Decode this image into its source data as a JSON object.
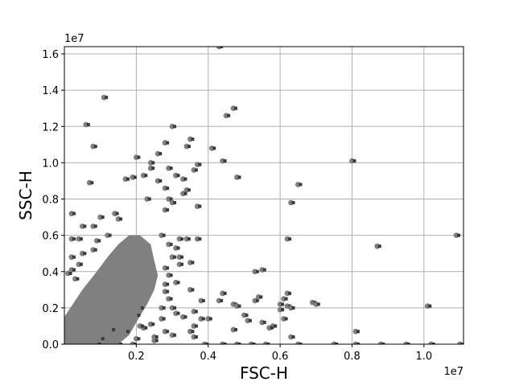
{
  "chart_data": {
    "type": "scatter",
    "title": "",
    "xlabel": "FSC-H",
    "ylabel": "SSC-H",
    "x_scale_label": "1e7",
    "y_scale_label": "1e7",
    "xlim": [
      0.0,
      1.11
    ],
    "ylim": [
      0.0,
      1.64
    ],
    "x_ticks": [
      0.2,
      0.4,
      0.6,
      0.8,
      1.0
    ],
    "x_tick_labels": [
      "0.2",
      "0.4",
      "0.6",
      "0.8",
      "1.0"
    ],
    "y_ticks": [
      0.0,
      0.2,
      0.4,
      0.6,
      0.8,
      1.0,
      1.2,
      1.4,
      1.6
    ],
    "y_tick_labels": [
      "0.0",
      "0.2",
      "0.4",
      "0.6",
      "0.8",
      "1.0",
      "1.2",
      "1.4",
      "1.6"
    ],
    "grid": true,
    "legend": "none",
    "point_color": "#808080",
    "point_edge_color": "#3a3a3a",
    "dense_region_color": "#808080",
    "dense_region": [
      [
        0.0,
        0.0
      ],
      [
        0.0,
        0.15
      ],
      [
        0.05,
        0.3
      ],
      [
        0.09,
        0.4
      ],
      [
        0.12,
        0.48
      ],
      [
        0.15,
        0.55
      ],
      [
        0.18,
        0.6
      ],
      [
        0.21,
        0.6
      ],
      [
        0.24,
        0.55
      ],
      [
        0.25,
        0.46
      ],
      [
        0.26,
        0.38
      ],
      [
        0.25,
        0.3
      ],
      [
        0.23,
        0.22
      ],
      [
        0.2,
        0.12
      ],
      [
        0.18,
        0.05
      ],
      [
        0.15,
        0.0
      ]
    ],
    "points": [
      [
        0.43,
        1.64
      ],
      [
        0.11,
        1.36
      ],
      [
        0.06,
        1.21
      ],
      [
        0.08,
        1.09
      ],
      [
        0.47,
        1.3
      ],
      [
        0.45,
        1.26
      ],
      [
        0.3,
        1.2
      ],
      [
        0.35,
        1.13
      ],
      [
        0.28,
        1.11
      ],
      [
        0.2,
        1.03
      ],
      [
        0.26,
        1.05
      ],
      [
        0.34,
        1.09
      ],
      [
        0.41,
        1.08
      ],
      [
        0.44,
        1.01
      ],
      [
        0.48,
        0.92
      ],
      [
        0.37,
        0.99
      ],
      [
        0.36,
        0.96
      ],
      [
        0.31,
        0.93
      ],
      [
        0.29,
        0.97
      ],
      [
        0.24,
        1.0
      ],
      [
        0.24,
        0.97
      ],
      [
        0.22,
        0.93
      ],
      [
        0.19,
        0.92
      ],
      [
        0.17,
        0.91
      ],
      [
        0.33,
        0.91
      ],
      [
        0.26,
        0.9
      ],
      [
        0.28,
        0.86
      ],
      [
        0.34,
        0.85
      ],
      [
        0.33,
        0.83
      ],
      [
        0.29,
        0.8
      ],
      [
        0.23,
        0.8
      ],
      [
        0.3,
        0.78
      ],
      [
        0.37,
        0.76
      ],
      [
        0.28,
        0.74
      ],
      [
        0.14,
        0.72
      ],
      [
        0.15,
        0.69
      ],
      [
        0.1,
        0.7
      ],
      [
        0.07,
        0.89
      ],
      [
        0.02,
        0.72
      ],
      [
        0.05,
        0.65
      ],
      [
        0.08,
        0.65
      ],
      [
        0.12,
        0.6
      ],
      [
        0.02,
        0.58
      ],
      [
        0.04,
        0.58
      ],
      [
        0.09,
        0.57
      ],
      [
        0.08,
        0.52
      ],
      [
        0.05,
        0.5
      ],
      [
        0.02,
        0.48
      ],
      [
        0.04,
        0.44
      ],
      [
        0.02,
        0.41
      ],
      [
        0.03,
        0.36
      ],
      [
        0.01,
        0.39
      ],
      [
        0.27,
        0.6
      ],
      [
        0.29,
        0.55
      ],
      [
        0.31,
        0.53
      ],
      [
        0.3,
        0.48
      ],
      [
        0.32,
        0.48
      ],
      [
        0.32,
        0.44
      ],
      [
        0.28,
        0.42
      ],
      [
        0.29,
        0.38
      ],
      [
        0.28,
        0.33
      ],
      [
        0.31,
        0.34
      ],
      [
        0.28,
        0.29
      ],
      [
        0.29,
        0.25
      ],
      [
        0.27,
        0.2
      ],
      [
        0.3,
        0.2
      ],
      [
        0.31,
        0.17
      ],
      [
        0.27,
        0.14
      ],
      [
        0.35,
        0.3
      ],
      [
        0.34,
        0.58
      ],
      [
        0.37,
        0.58
      ],
      [
        0.32,
        0.58
      ],
      [
        0.35,
        0.45
      ],
      [
        0.38,
        0.24
      ],
      [
        0.36,
        0.18
      ],
      [
        0.33,
        0.15
      ],
      [
        0.38,
        0.14
      ],
      [
        0.36,
        0.1
      ],
      [
        0.35,
        0.07
      ],
      [
        0.36,
        0.04
      ],
      [
        0.3,
        0.05
      ],
      [
        0.28,
        0.07
      ],
      [
        0.25,
        0.04
      ],
      [
        0.22,
        0.09
      ],
      [
        0.17,
        0.07
      ],
      [
        0.2,
        0.03
      ],
      [
        0.24,
        0.11
      ],
      [
        0.2,
        0.16
      ],
      [
        0.25,
        0.02
      ],
      [
        0.39,
        0.0
      ],
      [
        0.4,
        0.14
      ],
      [
        0.43,
        0.24
      ],
      [
        0.44,
        0.28
      ],
      [
        0.47,
        0.22
      ],
      [
        0.48,
        0.21
      ],
      [
        0.47,
        0.08
      ],
      [
        0.5,
        0.16
      ],
      [
        0.53,
        0.4
      ],
      [
        0.55,
        0.41
      ],
      [
        0.53,
        0.24
      ],
      [
        0.54,
        0.26
      ],
      [
        0.51,
        0.13
      ],
      [
        0.55,
        0.12
      ],
      [
        0.58,
        0.1
      ],
      [
        0.57,
        0.09
      ],
      [
        0.6,
        0.22
      ],
      [
        0.61,
        0.25
      ],
      [
        0.62,
        0.28
      ],
      [
        0.62,
        0.21
      ],
      [
        0.63,
        0.2
      ],
      [
        0.6,
        0.19
      ],
      [
        0.61,
        0.14
      ],
      [
        0.63,
        0.04
      ],
      [
        0.62,
        0.58
      ],
      [
        0.63,
        0.78
      ],
      [
        0.65,
        0.88
      ],
      [
        0.69,
        0.23
      ],
      [
        0.7,
        0.22
      ],
      [
        0.75,
        0.0
      ],
      [
        0.8,
        1.01
      ],
      [
        0.81,
        0.07
      ],
      [
        0.81,
        0.0
      ],
      [
        0.87,
        0.54
      ],
      [
        0.88,
        0.0
      ],
      [
        0.95,
        0.0
      ],
      [
        1.01,
        0.21
      ],
      [
        1.02,
        0.0
      ],
      [
        1.09,
        0.6
      ],
      [
        1.1,
        0.0
      ],
      [
        0.56,
        0.0
      ],
      [
        0.65,
        0.0
      ],
      [
        0.44,
        0.0
      ],
      [
        0.48,
        0.0
      ],
      [
        0.52,
        0.0
      ],
      [
        0.21,
        0.2
      ],
      [
        0.21,
        0.1
      ],
      [
        0.13,
        0.08
      ],
      [
        0.1,
        0.03
      ],
      [
        0.09,
        0.0
      ],
      [
        0.15,
        0.0
      ],
      [
        0.19,
        0.0
      ]
    ]
  }
}
